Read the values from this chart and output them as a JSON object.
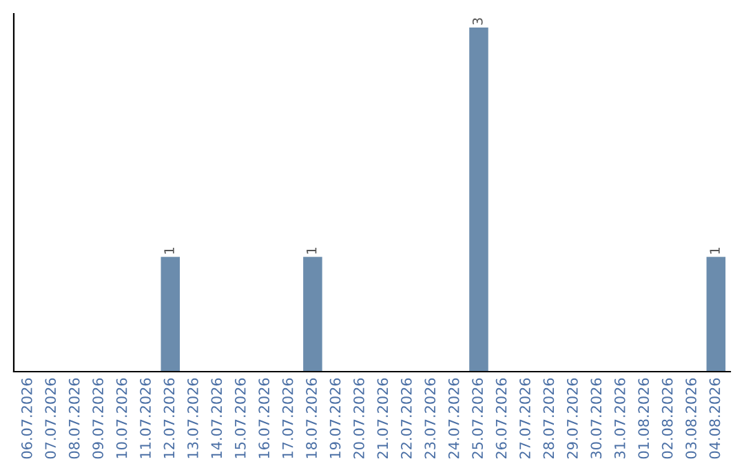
{
  "chart_data": {
    "type": "bar",
    "categories": [
      "06.07.2026",
      "07.07.2026",
      "08.07.2026",
      "09.07.2026",
      "10.07.2026",
      "11.07.2026",
      "12.07.2026",
      "13.07.2026",
      "14.07.2026",
      "15.07.2026",
      "16.07.2026",
      "17.07.2026",
      "18.07.2026",
      "19.07.2026",
      "20.07.2026",
      "21.07.2026",
      "22.07.2026",
      "23.07.2026",
      "24.07.2026",
      "25.07.2026",
      "26.07.2026",
      "27.07.2026",
      "28.07.2026",
      "29.07.2026",
      "30.07.2026",
      "31.07.2026",
      "01.08.2026",
      "02.08.2026",
      "03.08.2026",
      "04.08.2026"
    ],
    "values": [
      0,
      0,
      0,
      0,
      0,
      0,
      1,
      0,
      0,
      0,
      0,
      0,
      1,
      0,
      0,
      0,
      0,
      0,
      0,
      3,
      0,
      0,
      0,
      0,
      0,
      0,
      0,
      0,
      0,
      1
    ],
    "value_labels": [
      null,
      null,
      null,
      null,
      null,
      null,
      "1",
      null,
      null,
      null,
      null,
      null,
      "1",
      null,
      null,
      null,
      null,
      null,
      null,
      "3",
      null,
      null,
      null,
      null,
      null,
      null,
      null,
      null,
      null,
      "1"
    ],
    "color": "#6b8cad",
    "tick_labels": "x",
    "grid": false,
    "legend": false
  }
}
